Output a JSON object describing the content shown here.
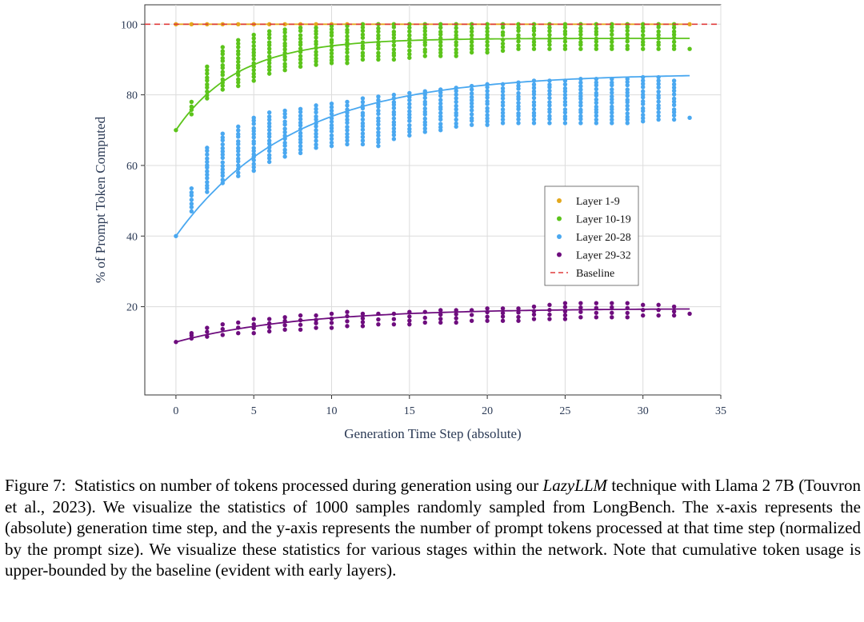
{
  "chart_data": {
    "type": "scatter",
    "xlabel": "Generation Time Step (absolute)",
    "ylabel": "% of Prompt Token Computed",
    "xlim": [
      -2,
      35
    ],
    "ylim": [
      -5,
      105.5
    ],
    "xticks": [
      0,
      5,
      10,
      15,
      20,
      25,
      30,
      35
    ],
    "yticks": [
      20,
      40,
      60,
      80,
      100
    ],
    "grid": true,
    "legend_position": "center-right",
    "baseline": {
      "name": "Baseline",
      "value": 100,
      "color": "#e03c3c",
      "style": "dashed"
    },
    "series": [
      {
        "name": "Layer 1-9",
        "color": "#e3a81d",
        "fit": {
          "start": 100,
          "end": 100,
          "tau": 1
        },
        "spread": [
          0,
          0,
          0,
          0,
          0,
          0,
          0,
          0,
          0,
          0,
          0,
          0,
          0,
          0,
          0,
          0,
          0,
          0,
          0,
          0,
          0,
          0,
          0,
          0,
          0,
          0,
          0,
          0,
          0,
          0,
          0,
          0,
          0,
          0
        ]
      },
      {
        "name": "Layer 10-19",
        "color": "#5cc41b",
        "fit": {
          "start": 70,
          "end": 96,
          "tau": 4.0
        },
        "spread": [
          [
            70,
            70
          ],
          [
            74.5,
            78
          ],
          [
            79,
            88
          ],
          [
            81.5,
            93.5
          ],
          [
            82.5,
            95.5
          ],
          [
            84,
            97
          ],
          [
            86,
            98
          ],
          [
            87,
            98.5
          ],
          [
            88,
            99
          ],
          [
            88.5,
            99
          ],
          [
            89,
            99.5
          ],
          [
            89,
            99.5
          ],
          [
            90,
            100
          ],
          [
            90,
            100
          ],
          [
            90,
            100
          ],
          [
            90.5,
            100
          ],
          [
            91,
            100
          ],
          [
            91,
            100
          ],
          [
            91,
            100
          ],
          [
            92,
            100
          ],
          [
            92,
            100
          ],
          [
            92.5,
            100
          ],
          [
            93,
            100
          ],
          [
            93,
            100
          ],
          [
            93,
            100
          ],
          [
            93,
            100
          ],
          [
            93,
            100
          ],
          [
            93,
            100
          ],
          [
            93,
            100
          ],
          [
            93,
            100
          ],
          [
            93,
            100
          ],
          [
            93,
            100
          ],
          [
            93,
            100
          ],
          [
            93,
            93
          ]
        ]
      },
      {
        "name": "Layer 20-28",
        "color": "#4aa8f0",
        "fit": {
          "start": 40,
          "end": 86,
          "tau": 7.5
        },
        "spread": [
          [
            40,
            40
          ],
          [
            47,
            53.5
          ],
          [
            52.5,
            65
          ],
          [
            55,
            69
          ],
          [
            57,
            71
          ],
          [
            58.5,
            73.5
          ],
          [
            61,
            75
          ],
          [
            62.5,
            75.5
          ],
          [
            63.5,
            76
          ],
          [
            65,
            77
          ],
          [
            65.5,
            77.5
          ],
          [
            66,
            78
          ],
          [
            66,
            79
          ],
          [
            65.5,
            79.5
          ],
          [
            67.5,
            80
          ],
          [
            68.5,
            80.5
          ],
          [
            69.5,
            81
          ],
          [
            70,
            81.5
          ],
          [
            71,
            82
          ],
          [
            71.5,
            82.5
          ],
          [
            71.5,
            83
          ],
          [
            72,
            83
          ],
          [
            72,
            83.5
          ],
          [
            72,
            84
          ],
          [
            72,
            84
          ],
          [
            72,
            84
          ],
          [
            72,
            84.5
          ],
          [
            72,
            84.5
          ],
          [
            72,
            84.5
          ],
          [
            72,
            84.5
          ],
          [
            72.5,
            85
          ],
          [
            73,
            85
          ],
          [
            73,
            84
          ],
          [
            73.5,
            73.5
          ]
        ]
      },
      {
        "name": "Layer 29-32",
        "color": "#6e0d7e",
        "fit": {
          "start": 10,
          "end": 19.5,
          "tau": 8
        },
        "spread": [
          [
            10,
            10
          ],
          [
            11,
            12.5
          ],
          [
            11.5,
            14
          ],
          [
            12,
            15
          ],
          [
            12.5,
            15.5
          ],
          [
            12.5,
            16.5
          ],
          [
            13,
            16.5
          ],
          [
            13.5,
            17
          ],
          [
            13.5,
            17.5
          ],
          [
            14,
            17.5
          ],
          [
            14,
            18
          ],
          [
            14.5,
            18.5
          ],
          [
            14.5,
            18
          ],
          [
            15,
            18
          ],
          [
            15,
            18
          ],
          [
            15,
            18.5
          ],
          [
            15.5,
            18.5
          ],
          [
            15.5,
            19
          ],
          [
            15.5,
            19
          ],
          [
            16,
            19
          ],
          [
            16,
            19.5
          ],
          [
            16,
            19.5
          ],
          [
            16,
            19.5
          ],
          [
            16.5,
            20
          ],
          [
            16.5,
            20.5
          ],
          [
            16.5,
            21
          ],
          [
            17,
            21
          ],
          [
            17,
            21
          ],
          [
            17,
            21
          ],
          [
            17,
            21
          ],
          [
            17.5,
            20.5
          ],
          [
            17.5,
            20.5
          ],
          [
            17.5,
            20
          ],
          [
            18,
            18
          ]
        ]
      }
    ]
  },
  "caption": {
    "label": "Figure 7:",
    "text_before": "Statistics on number of tokens processed during generation using our",
    "technique_name": "LazyLLM",
    "text_after": "technique with Llama 2 7B (Touvron et al., 2023). We visualize the statistics of 1000 samples randomly sampled from LongBench. The x-axis represents the (absolute) generation time step, and the y-axis represents the number of prompt tokens processed at that time step (normalized by the prompt size). We visualize these statistics for various stages within the network. Note that cumulative token usage is upper-bounded by the baseline (evident with early layers)."
  }
}
